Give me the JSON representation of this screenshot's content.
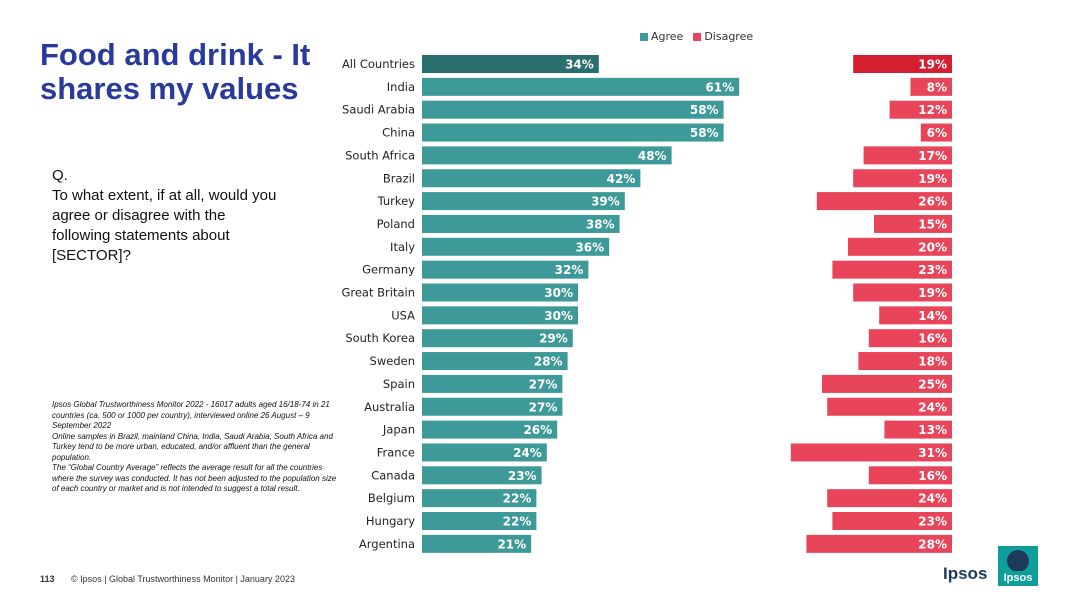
{
  "title": "Food and drink - It shares my values",
  "question": {
    "label": "Q.",
    "text": "To what extent, if at all, would you agree or disagree with the following statements about [SECTOR]?"
  },
  "notes": [
    "Ipsos Global Trustworthiness Monitor 2022 - 16017 adults aged 16/18-74 in 21 countries (ca. 500 or 1000 per country), interviewed online 26 August – 9 September 2022",
    "Online samples in Brazil, mainland China, India, Saudi Arabia, South Africa and Turkey tend to be more urban, educated, and/or affluent than the general population.",
    "The “Global Country Average” reflects the average result for all the countries where the survey was conducted. It has not been adjusted to the population size of each country or market and is not intended to suggest a total result."
  ],
  "footer": {
    "page": "113",
    "text": "© Ipsos | Global Trustworthiness Monitor | January 2023"
  },
  "logo": {
    "text": "Ipsos",
    "mark_text": "Ipsos"
  },
  "colors": {
    "agree": "#3d9a98",
    "agree_highlight": "#2b6e6e",
    "disagree": "#e8455a",
    "disagree_highlight": "#d31f2f",
    "title": "#2a3a9c"
  },
  "chart_data": {
    "type": "bar",
    "orientation": "horizontal",
    "legend": [
      "Agree",
      "Disagree"
    ],
    "legend_position": "top",
    "grid": false,
    "categories": [
      "All Countries",
      "India",
      "Saudi Arabia",
      "China",
      "South Africa",
      "Brazil",
      "Turkey",
      "Poland",
      "Italy",
      "Germany",
      "Great Britain",
      "USA",
      "South Korea",
      "Sweden",
      "Spain",
      "Australia",
      "Japan",
      "France",
      "Canada",
      "Belgium",
      "Hungary",
      "Argentina"
    ],
    "series": [
      {
        "name": "Agree",
        "values": [
          34,
          61,
          58,
          58,
          48,
          42,
          39,
          38,
          36,
          32,
          30,
          30,
          29,
          28,
          27,
          27,
          26,
          24,
          23,
          22,
          22,
          21
        ]
      },
      {
        "name": "Disagree",
        "values": [
          19,
          8,
          12,
          6,
          17,
          19,
          26,
          15,
          20,
          23,
          19,
          14,
          16,
          18,
          25,
          24,
          13,
          31,
          16,
          24,
          23,
          28
        ]
      }
    ],
    "value_suffix": "%",
    "highlight_index": 0
  }
}
